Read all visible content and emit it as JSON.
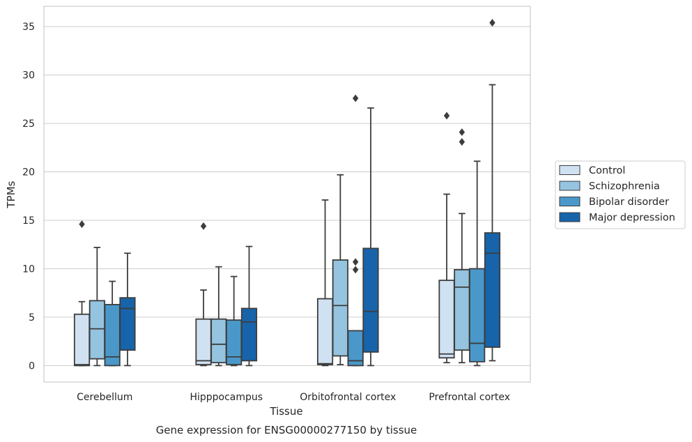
{
  "caption": "Gene expression for ENSG00000277150 by tissue",
  "colors": {
    "Control": "#d0e1f2",
    "Schizophrenia": "#94c4df",
    "Bipolar disorder": "#4a98c9",
    "Major depression": "#1764ab",
    "edge": "#3d3d3d",
    "grid": "#cccccc",
    "frame": "#cccccc"
  },
  "chart_data": {
    "type": "box",
    "xlabel": "Tissue",
    "ylabel": "TPMs",
    "ylim": [
      -1.7,
      37.1
    ],
    "yticks": [
      0,
      5,
      10,
      15,
      20,
      25,
      30,
      35
    ],
    "grid": "horizontal",
    "legend_placement": "right",
    "categories": [
      "Cerebellum",
      "Hipppocampus",
      "Orbitofrontal cortex",
      "Prefrontal cortex"
    ],
    "series": [
      {
        "name": "Control",
        "boxes": [
          {
            "whislo": 0,
            "q1": 0,
            "med": 0.1,
            "q3": 5.3,
            "whishi": 6.6,
            "fliers": [
              14.6
            ]
          },
          {
            "whislo": 0,
            "q1": 0.1,
            "med": 0.5,
            "q3": 4.8,
            "whishi": 7.8,
            "fliers": [
              14.4
            ]
          },
          {
            "whislo": 0,
            "q1": 0.1,
            "med": 0.2,
            "q3": 6.9,
            "whishi": 17.1,
            "fliers": []
          },
          {
            "whislo": 0.3,
            "q1": 0.8,
            "med": 1.2,
            "q3": 8.8,
            "whishi": 17.7,
            "fliers": [
              25.8
            ]
          }
        ]
      },
      {
        "name": "Schizophrenia",
        "boxes": [
          {
            "whislo": 0,
            "q1": 0.7,
            "med": 3.8,
            "q3": 6.7,
            "whishi": 12.2,
            "fliers": []
          },
          {
            "whislo": 0,
            "q1": 0.3,
            "med": 2.2,
            "q3": 4.8,
            "whishi": 10.2,
            "fliers": []
          },
          {
            "whislo": 0.1,
            "q1": 1.0,
            "med": 6.2,
            "q3": 10.9,
            "whishi": 19.7,
            "fliers": []
          },
          {
            "whislo": 0.3,
            "q1": 1.6,
            "med": 8.1,
            "q3": 9.9,
            "whishi": 15.7,
            "fliers": [
              23.1,
              24.1
            ]
          }
        ]
      },
      {
        "name": "Bipolar disorder",
        "boxes": [
          {
            "whislo": 0,
            "q1": 0,
            "med": 0.9,
            "q3": 6.3,
            "whishi": 8.7,
            "fliers": []
          },
          {
            "whislo": 0,
            "q1": 0.1,
            "med": 0.9,
            "q3": 4.7,
            "whishi": 9.2,
            "fliers": []
          },
          {
            "whislo": 0,
            "q1": 0,
            "med": 0.5,
            "q3": 3.6,
            "whishi": 3.6,
            "fliers": [
              9.9,
              10.7,
              27.6
            ]
          },
          {
            "whislo": 0,
            "q1": 0.4,
            "med": 2.3,
            "q3": 10.0,
            "whishi": 21.1,
            "fliers": []
          }
        ]
      },
      {
        "name": "Major depression",
        "boxes": [
          {
            "whislo": 0,
            "q1": 1.6,
            "med": 5.9,
            "q3": 7.0,
            "whishi": 11.6,
            "fliers": []
          },
          {
            "whislo": 0,
            "q1": 0.5,
            "med": 4.5,
            "q3": 5.9,
            "whishi": 12.3,
            "fliers": []
          },
          {
            "whislo": 0,
            "q1": 1.4,
            "med": 5.6,
            "q3": 12.1,
            "whishi": 26.6,
            "fliers": []
          },
          {
            "whislo": 0.5,
            "q1": 1.9,
            "med": 11.6,
            "q3": 13.7,
            "whishi": 29.0,
            "fliers": [
              35.4
            ]
          }
        ]
      }
    ]
  }
}
